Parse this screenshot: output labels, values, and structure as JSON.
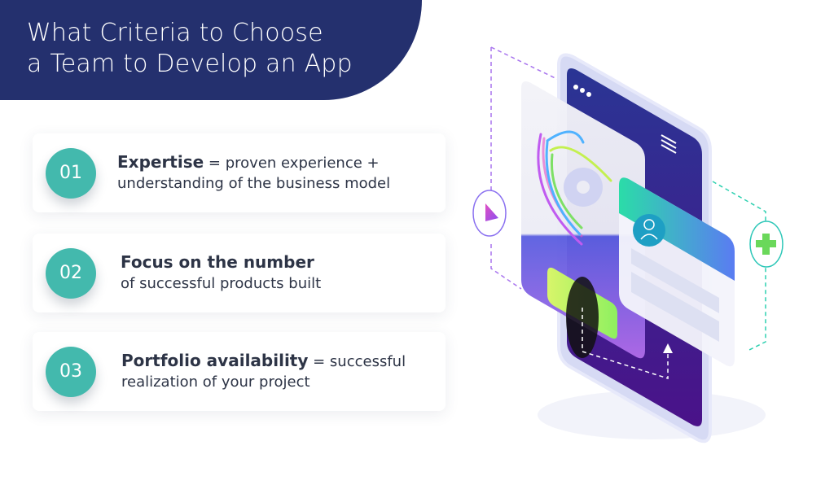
{
  "header": {
    "title_line1": "What Criteria to Choose",
    "title_line2": "a Team to Develop an App",
    "background_color": "#24306e"
  },
  "criteria": [
    {
      "number": "01",
      "bold": "Expertise",
      "rest_line1": " = proven experience +",
      "line2": "understanding of the business model"
    },
    {
      "number": "02",
      "bold": "Focus on the number",
      "rest_line1": "",
      "line2": "of successful products built"
    },
    {
      "number": "03",
      "bold": "Portfolio availability",
      "rest_line1": " = successful",
      "line2": "realization of your project"
    }
  ],
  "colors": {
    "accent": "#43b9ad",
    "text": "#2d3446"
  },
  "illustration": {
    "icons": [
      "smartphone",
      "gear-icon",
      "user-icon",
      "play-icon",
      "plus-icon",
      "menu-icon"
    ]
  }
}
